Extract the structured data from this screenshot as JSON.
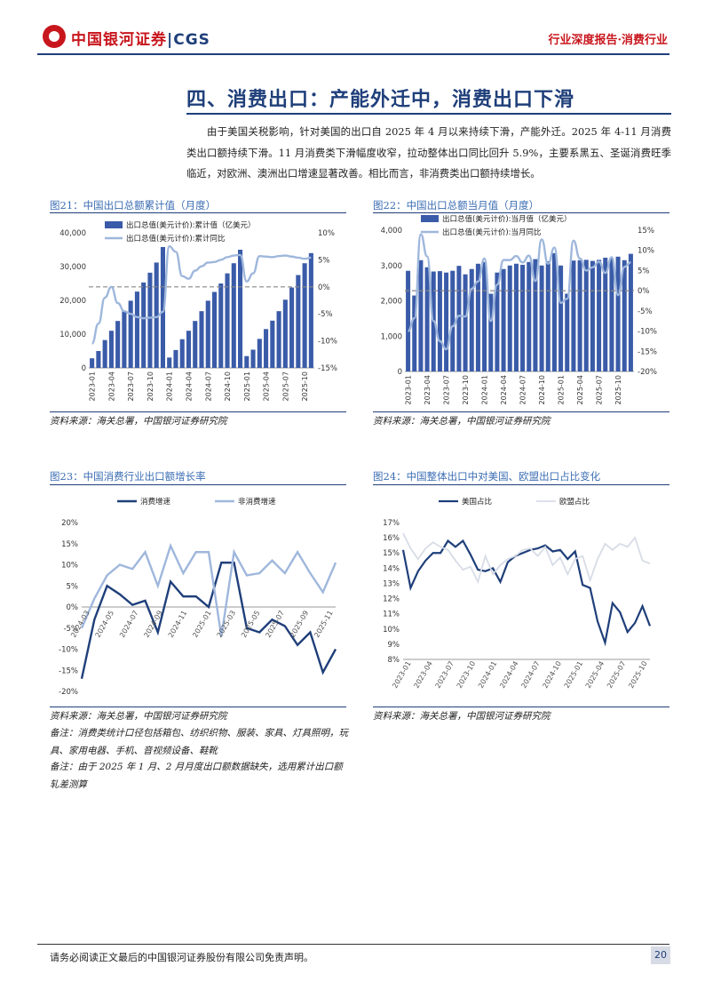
{
  "header": {
    "logo_text": "中国银河证券",
    "logo_sep": "|",
    "logo_cgs": "CGS",
    "report_tag": "行业深度报告·消费行业"
  },
  "section": {
    "title": "四、消费出口：产能外迁中，消费出口下滑",
    "paragraph": "由于美国关税影响，针对美国的出口自 2025 年 4 月以来持续下滑，产能外迁。2025 年 4-11 月消费类出口额持续下滑。11 月消费类下滑幅度收窄，拉动整体出口同比回升 5.9%，主要系黑五、圣诞消费旺季临近，对欧洲、澳洲出口增速显著改善。相比而言，非消费类出口额持续增长。"
  },
  "figures": {
    "fig21_title": "图21：中国出口总额累计值（月度）",
    "fig22_title": "图22：中国出口总额当月值（月度）",
    "fig23_title": "图23：中国消费行业出口额增长率",
    "fig24_title": "图24：中国整体出口中对美国、欧盟出口占比变化",
    "source": "资料来源：海关总署，中国银河证券研究院",
    "note1": "备注：消费类统计口径包括箱包、纺织织物、服装、家具、灯具照明，玩具、家用电器、手机、音视频设备、鞋靴",
    "note2": "备注：由于 2025 年 1 月、2 月月度出口额数据缺失，选用累计出口额轧差测算"
  },
  "footer": {
    "disclaimer": "请务必阅读正文最后的中国银河证券股份有限公司免责声明。",
    "page": "20"
  },
  "colors": {
    "brand_red": "#c8161d",
    "navy": "#1f3f7a",
    "bar_blue": "#3a5ba8",
    "light_line": "#9fb7dc",
    "fig_title_blue": "#3b6db3"
  },
  "chart_data": [
    {
      "type": "bar",
      "x_tick_labels": [
        "2023-01",
        "2023-04",
        "2023-07",
        "2023-10",
        "2024-01",
        "2024-04",
        "2024-07",
        "2024-10",
        "2025-01",
        "2025-04",
        "2025-07",
        "2025-10"
      ],
      "series": [
        {
          "name": "出口总值(美元计价):累计值（亿美元）",
          "axis": "left",
          "type": "bar",
          "values": [
            2850,
            5000,
            8250,
            11000,
            13900,
            16800,
            19900,
            22600,
            25300,
            28200,
            31200,
            35800,
            3070,
            5300,
            8500,
            11000,
            13900,
            16800,
            19900,
            22500,
            25000,
            28000,
            31000,
            35000,
            3500,
            5400,
            8600,
            11500,
            14000,
            16800,
            20200,
            23800,
            27500,
            31000,
            34000
          ]
        },
        {
          "name": "出口总值(美元计价):累计同比",
          "axis": "right",
          "type": "line",
          "values": [
            -10.5,
            -6.8,
            -2,
            0,
            -3,
            -4.5,
            -5,
            -5.6,
            -5.8,
            -5.7,
            -5.6,
            -4.6,
            7.5,
            6.5,
            2,
            1.5,
            3,
            3.8,
            4.5,
            4.6,
            5,
            5.5,
            5.8,
            5.9,
            1,
            2.5,
            5.7,
            5.6,
            5.5,
            5.7,
            5.8,
            5.6,
            5.4,
            5.2,
            5.4
          ]
        }
      ],
      "y_left_ticks": [
        "40,000",
        "30,000",
        "20,000",
        "10,000",
        "0"
      ],
      "y_right_ticks": [
        "10%",
        "5%",
        "0%",
        "-5%",
        "-10%",
        "-15%"
      ],
      "ylim_left": [
        0,
        40000
      ],
      "ylim_right": [
        -15,
        10
      ],
      "reference_line_right": 0
    },
    {
      "type": "bar",
      "x_tick_labels": [
        "2023-01",
        "2023-04",
        "2023-07",
        "2023-10",
        "2024-01",
        "2024-04",
        "2024-07",
        "2024-10",
        "2025-01",
        "2025-04",
        "2025-07",
        "2025-10"
      ],
      "series": [
        {
          "name": "出口总值(美元计价):当月值（亿美元）",
          "axis": "left",
          "type": "bar",
          "values": [
            2850,
            2150,
            3150,
            2950,
            2830,
            2840,
            2800,
            2850,
            2990,
            2750,
            2900,
            3050,
            3100,
            2200,
            2800,
            2900,
            3000,
            3050,
            3020,
            3100,
            3180,
            3000,
            3120,
            3350,
            3000,
            2200,
            3140,
            3150,
            3160,
            3130,
            3160,
            3220,
            3200,
            3250,
            3150,
            3330
          ]
        },
        {
          "name": "出口总值(美元计价):当月同比",
          "axis": "right",
          "type": "line",
          "values": [
            -10,
            -6.8,
            14,
            8.5,
            -7.5,
            -12.5,
            -14.5,
            -8.8,
            -6.2,
            -6.4,
            0.5,
            2.3,
            8,
            -7.5,
            1.5,
            7.6,
            7.6,
            8.6,
            7,
            8.7,
            2.4,
            12.7,
            6.7,
            10.7,
            -3,
            -2,
            12.4,
            8,
            5,
            5.8,
            7.2,
            4.4,
            8.3,
            -1.1,
            5.9,
            7
          ]
        }
      ],
      "y_left_ticks": [
        "4,000",
        "3,000",
        "2,000",
        "1,000",
        "0"
      ],
      "y_right_ticks": [
        "15%",
        "10%",
        "5%",
        "0%",
        "-5%",
        "-10%",
        "-15%",
        "-20%"
      ],
      "ylim_left": [
        0,
        4000
      ],
      "ylim_right": [
        -20,
        15
      ],
      "reference_line_right": 0
    },
    {
      "type": "line",
      "x_tick_labels": [
        "2024-03",
        "2024-05",
        "2024-07",
        "2024-09",
        "2024-11",
        "2025-01",
        "2025-03",
        "2025-05",
        "2025-07",
        "2025-09",
        "2025-11"
      ],
      "series": [
        {
          "name": "消费增速",
          "values": [
            -17,
            -3,
            5,
            3,
            0.5,
            1.5,
            -6,
            6,
            2.5,
            2.5,
            0,
            10.5,
            10.5,
            -5,
            -6,
            -3,
            -4.5,
            -9,
            -6,
            -15.5,
            -10
          ]
        },
        {
          "name": "非消费增速",
          "values": [
            -5,
            2,
            7.5,
            10,
            9,
            13,
            5,
            14.5,
            8,
            13,
            13,
            -7,
            13,
            7.5,
            8,
            11,
            8,
            13,
            8,
            3.5,
            10.5
          ]
        }
      ],
      "y_ticks": [
        "20%",
        "15%",
        "10%",
        "5%",
        "0%",
        "-5%",
        "-10%",
        "-15%",
        "-20%"
      ],
      "ylim": [
        -20,
        20
      ]
    },
    {
      "type": "line",
      "x_tick_labels": [
        "2023-01",
        "2023-04",
        "2023-07",
        "2023-10",
        "2024-01",
        "2024-04",
        "2024-07",
        "2024-10",
        "2025-01",
        "2025-04",
        "2025-07",
        "2025-10"
      ],
      "series": [
        {
          "name": "美国占比",
          "values": [
            15.2,
            12.7,
            13.8,
            14.5,
            15,
            15,
            15.8,
            15.4,
            15.8,
            14.9,
            13.9,
            13.8,
            14,
            13.1,
            14.4,
            14.8,
            15,
            15.2,
            15.3,
            15.5,
            15.1,
            15.2,
            14.6,
            15.1,
            12.9,
            12.7,
            10.5,
            9.1,
            11.7,
            11.1,
            9.8,
            10.4,
            11.5,
            10.2
          ]
        },
        {
          "name": "欧盟占比",
          "values": [
            16.3,
            15.3,
            14.6,
            15.3,
            15.7,
            15.4,
            15.2,
            14.5,
            13.9,
            14.1,
            13.1,
            14.8,
            13.6,
            14.2,
            14.6,
            14.8,
            15.2,
            15.3,
            14.8,
            15.4,
            14.2,
            14.7,
            13.6,
            14.6,
            14.8,
            13.2,
            14.6,
            15.6,
            15.2,
            15.6,
            15.4,
            16,
            14.5,
            14.3
          ]
        }
      ],
      "y_ticks": [
        "17%",
        "16%",
        "15%",
        "14%",
        "13%",
        "12%",
        "11%",
        "10%",
        "9%",
        "8%"
      ],
      "ylim": [
        8,
        17
      ]
    }
  ]
}
